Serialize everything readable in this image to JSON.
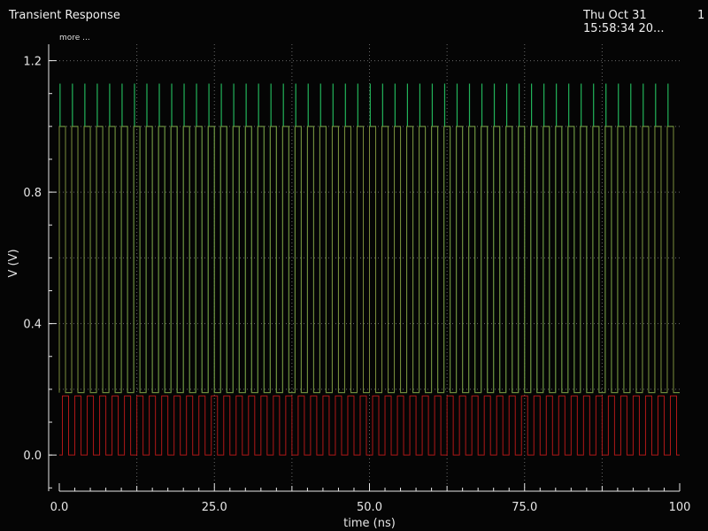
{
  "header": {
    "title": "Transient Response",
    "date_line1": "Thu Oct 31",
    "date_line2": "15:58:34 20...",
    "page": "1",
    "legend_more": "more ..."
  },
  "chart_data": {
    "type": "line",
    "xlabel": "time (ns)",
    "ylabel": "V (V)",
    "xlim": [
      0,
      100
    ],
    "ylim": [
      -0.11,
      1.25
    ],
    "x_ticks": [
      0,
      25,
      50,
      75,
      100
    ],
    "x_tick_labels": [
      "0.0",
      "25.0",
      "50.0",
      "75.0",
      "100"
    ],
    "y_ticks": [
      0.0,
      0.4,
      0.8,
      1.2
    ],
    "y_tick_labels": [
      "0.0",
      "0.4",
      "0.8",
      "1.2"
    ],
    "grid": true,
    "series": [
      {
        "color": "#22b35a",
        "kind": "pulse",
        "period_ns": 2.0,
        "first_edge_ns": 0.0,
        "pulse_width_ns": 1.0,
        "low": 0.19,
        "high": 1.0,
        "spike_peak": 1.13,
        "spike_width_ns": 0.12
      },
      {
        "color": "#7a8a3a",
        "kind": "pulse",
        "period_ns": 2.0,
        "first_edge_ns": 0.0,
        "pulse_width_ns": 1.0,
        "low": 0.19,
        "high": 1.0
      },
      {
        "color": "#b01818",
        "kind": "pulse",
        "period_ns": 2.0,
        "first_edge_ns": 0.5,
        "pulse_width_ns": 1.0,
        "low": 0.0,
        "high": 0.18
      }
    ],
    "colors": {
      "grid": "#6a6a6a",
      "axis": "#e6e6e6",
      "background": "#050505"
    }
  }
}
